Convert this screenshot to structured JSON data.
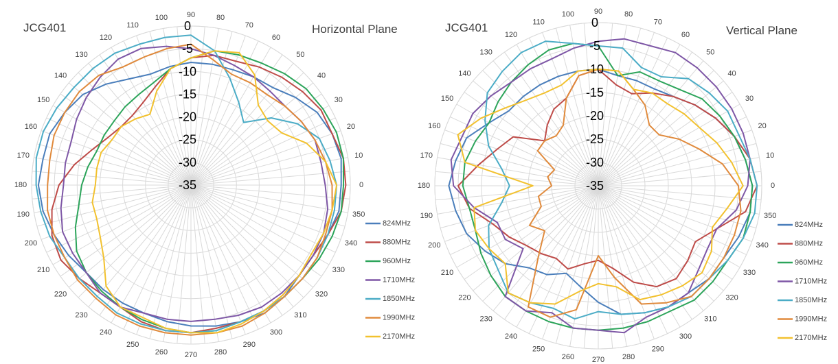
{
  "chart_data": [
    {
      "type": "radar",
      "model": "JCG401",
      "plane": "Horizontal Plane",
      "r_ticks": [
        0,
        -5,
        -10,
        -15,
        -20,
        -25,
        -30,
        -35
      ],
      "r_range": [
        -35,
        0
      ],
      "angle_ticks": [
        0,
        10,
        20,
        30,
        40,
        50,
        60,
        70,
        80,
        90,
        100,
        110,
        120,
        130,
        140,
        150,
        160,
        170,
        180,
        190,
        200,
        210,
        220,
        230,
        240,
        250,
        260,
        270,
        280,
        290,
        300,
        310,
        320,
        330,
        340,
        350
      ],
      "grid": true,
      "legend": "right",
      "series": [
        {
          "name": "824MHz",
          "color": "#4a7ebb",
          "values": [
            -2,
            -1.5,
            -2,
            -3,
            -5,
            -7,
            -7.5,
            -8,
            -8,
            -8,
            -8.5,
            -9,
            -8,
            -6,
            -4,
            -3,
            -2,
            -2,
            -1.5,
            -2,
            -3,
            -4,
            -5,
            -5,
            -5,
            -5,
            -4.5,
            -4,
            -3.5,
            -3,
            -2.5,
            -3,
            -4,
            -4,
            -3,
            -2
          ]
        },
        {
          "name": "880MHz",
          "color": "#be4b48",
          "values": [
            -1,
            -1,
            -2,
            -2,
            -3,
            -4,
            -5,
            -6,
            -6,
            -7,
            -9,
            -12,
            -14,
            -15,
            -15,
            -14,
            -12,
            -9,
            -6,
            -4,
            -2.5,
            -2,
            -3,
            -4,
            -4,
            -3,
            -2.5,
            -2.5,
            -3,
            -3,
            -3,
            -3.5,
            -4,
            -4,
            -3,
            -1.5
          ]
        },
        {
          "name": "960MHz",
          "color": "#2ca45a",
          "values": [
            -1.5,
            -1,
            -1,
            -1.5,
            -2,
            -3,
            -4,
            -4.5,
            -5,
            -7,
            -9,
            -11,
            -12,
            -12.5,
            -13,
            -13,
            -13,
            -12,
            -11,
            -10,
            -8,
            -6,
            -5,
            -4.5,
            -4,
            -3.5,
            -3,
            -2.5,
            -2.5,
            -3,
            -3,
            -3,
            -3,
            -2.5,
            -2,
            -1.5
          ]
        },
        {
          "name": "1710MHz",
          "color": "#7e57a6",
          "values": [
            -5.5,
            -6,
            -6,
            -7,
            -8,
            -8,
            -7.5,
            -7,
            -6,
            -5,
            -4,
            -3,
            -3,
            -4,
            -5,
            -6,
            -7,
            -7,
            -7,
            -6,
            -5,
            -5,
            -5,
            -4,
            -4,
            -5,
            -5,
            -5,
            -5,
            -4.5,
            -4,
            -4,
            -4,
            -4,
            -4,
            -4.5
          ]
        },
        {
          "name": "1850MHz",
          "color": "#4bacc6",
          "values": [
            -3,
            -4,
            -5,
            -8,
            -12,
            -17,
            -14,
            -10,
            -5,
            -2,
            -2,
            -2,
            -1.5,
            -1.5,
            -1.5,
            -1,
            -0.5,
            -0.5,
            -1,
            -1.5,
            -2,
            -3,
            -3,
            -3,
            -2.5,
            -2.5,
            -2.5,
            -2.5,
            -2.5,
            -3,
            -3,
            -3,
            -3,
            -3,
            -3,
            -3
          ]
        },
        {
          "name": "1990MHz",
          "color": "#e08a3c",
          "values": [
            -4,
            -5,
            -6,
            -7,
            -8,
            -9,
            -9,
            -9,
            -7,
            -4,
            -4.5,
            -5,
            -5,
            -3.5,
            -3,
            -3,
            -3,
            -3.5,
            -3.5,
            -3,
            -3,
            -3,
            -2.5,
            -2.5,
            -2,
            -2,
            -2,
            -2,
            -2,
            -2,
            -2.5,
            -3,
            -3,
            -3,
            -3.5,
            -3.5
          ]
        },
        {
          "name": "2170MHz",
          "color": "#f2c12e",
          "values": [
            -3,
            -5,
            -8,
            -12,
            -13,
            -12,
            -7,
            -4,
            -5,
            -7,
            -9,
            -13,
            -17,
            -16,
            -15,
            -15,
            -14,
            -14,
            -14,
            -13,
            -13,
            -12,
            -10,
            -6,
            -4,
            -4,
            -3,
            -2.5,
            -2,
            -2.5,
            -3,
            -3.5,
            -4,
            -4.5,
            -4,
            -3.5
          ]
        }
      ]
    },
    {
      "type": "radar",
      "model": "JCG401",
      "plane": "Vertical Plane",
      "r_ticks": [
        0,
        -5,
        -10,
        -15,
        -20,
        -25,
        -30,
        -35
      ],
      "r_range": [
        -35,
        0
      ],
      "angle_ticks": [
        0,
        10,
        20,
        30,
        40,
        50,
        60,
        70,
        80,
        90,
        100,
        110,
        120,
        130,
        140,
        150,
        160,
        170,
        180,
        190,
        200,
        210,
        220,
        230,
        240,
        250,
        260,
        270,
        280,
        290,
        300,
        310,
        320,
        330,
        340,
        350
      ],
      "grid": true,
      "legend": "right",
      "series": [
        {
          "name": "824MHz",
          "color": "#4a7ebb",
          "values": [
            -2,
            -3,
            -4,
            -6,
            -8,
            -10,
            -11,
            -11,
            -11,
            -10,
            -10,
            -10,
            -10,
            -10,
            -10,
            -8,
            -5,
            -4,
            -3,
            -4,
            -5,
            -7,
            -9,
            -12,
            -13,
            -15,
            -13,
            -10,
            -7,
            -6,
            -5,
            -5,
            -4,
            -4,
            -3,
            -2
          ]
        },
        {
          "name": "880MHz",
          "color": "#be4b48",
          "values": [
            -1,
            -2,
            -4,
            -6,
            -8,
            -10,
            -12,
            -14,
            -13,
            -10,
            -11,
            -15,
            -16,
            -18,
            -20,
            -14,
            -12,
            -9,
            -5,
            -7,
            -11,
            -13,
            -15,
            -16,
            -17,
            -16,
            -18,
            -19,
            -17,
            -13,
            -10,
            -9,
            -10,
            -11,
            -8,
            -3
          ]
        },
        {
          "name": "960MHz",
          "color": "#2ca45a",
          "values": [
            -2,
            -3,
            -4,
            -5,
            -6,
            -8,
            -9,
            -9,
            -11,
            -5,
            -4,
            -4,
            -5,
            -6,
            -7,
            -8,
            -7,
            -6,
            -6,
            -7,
            -7,
            -6,
            -5,
            -4,
            -4,
            -4,
            -4,
            -4,
            -4,
            -4,
            -4,
            -3,
            -3,
            -3,
            -2,
            -2
          ]
        },
        {
          "name": "1710MHz",
          "color": "#7e57a6",
          "values": [
            -3,
            -2,
            -2,
            -2,
            -2,
            -2,
            -2,
            -3,
            -3,
            -4,
            -5,
            -6,
            -6,
            -6,
            -5,
            -4,
            -4,
            -3,
            -4,
            -8,
            -12,
            -12,
            -14,
            -4,
            -4,
            -6,
            -4,
            -4,
            -3,
            -5,
            -5,
            -5,
            -7,
            -8,
            -8,
            -5
          ]
        },
        {
          "name": "1850MHz",
          "color": "#4bacc6",
          "values": [
            -1,
            -2,
            -3,
            -3,
            -4,
            -5,
            -8,
            -8,
            -5,
            -5,
            -4,
            -2,
            -2,
            -3,
            -4,
            -7,
            -10,
            -14,
            -16,
            -14,
            -10,
            -8,
            -7,
            -5,
            -6,
            -7,
            -6,
            -8,
            -7,
            -6,
            -5,
            -4,
            -4,
            -3,
            -2,
            -1
          ]
        },
        {
          "name": "1990MHz",
          "color": "#e08a3c",
          "values": [
            -5,
            -8,
            -12,
            -15,
            -18,
            -18,
            -15,
            -13,
            -10,
            -10,
            -11,
            -15,
            -20,
            -21,
            -20,
            -20,
            -25,
            -24,
            -25,
            -22,
            -22,
            -18,
            -20,
            -15,
            -5,
            -5,
            -8,
            -20,
            -15,
            -8,
            -6,
            -4,
            -4,
            -4,
            -4,
            -4
          ]
        },
        {
          "name": "2170MHz",
          "color": "#f2c12e",
          "values": [
            -4,
            -6,
            -8,
            -10,
            -11,
            -12,
            -12,
            -13,
            -10,
            -10,
            -10,
            -12,
            -12,
            -11,
            -9,
            -6,
            -3,
            -6,
            -21,
            -8,
            -7,
            -8,
            -9,
            -5,
            -6,
            -8,
            -12,
            -14,
            -13,
            -9,
            -8,
            -7,
            -6,
            -7,
            -9,
            -7
          ]
        }
      ]
    }
  ]
}
